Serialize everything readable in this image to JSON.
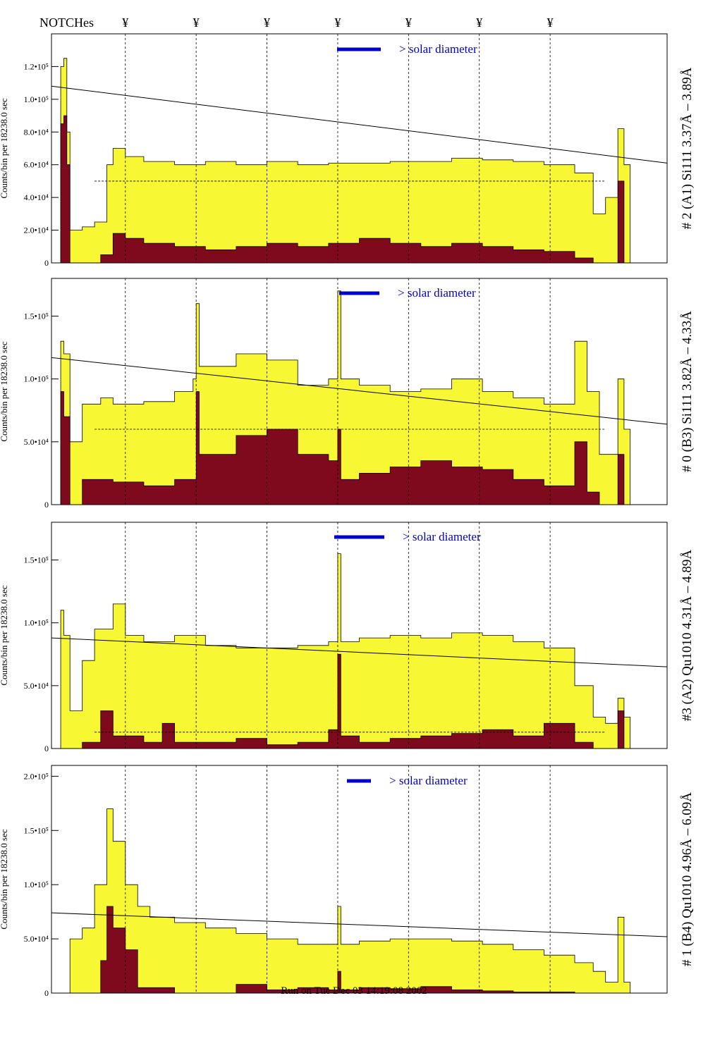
{
  "notches_label": "NOTCHes",
  "notch_symbol": "¥",
  "notch_positions_bin": [
    0.12,
    0.235,
    0.35,
    0.465,
    0.58,
    0.695,
    0.81
  ],
  "footer": "Run on Tue Dec 03 14:19:08 2002",
  "colors": {
    "yellow": "#f7f733",
    "maroon": "#7f0a1e",
    "blue": "#0000cc"
  },
  "solar_label": "> solar diameter",
  "chart_data": [
    {
      "type": "bar",
      "right_label": "# 2 (A1) Si111  3.37Å – 3.89Å",
      "ylabel": "Counts/bin per  18238.0 sec",
      "ylim": [
        0,
        140000
      ],
      "yticks": [
        0,
        20000,
        40000,
        60000,
        80000,
        100000,
        120000
      ],
      "ytick_labels": [
        "0",
        "2.0•10⁴",
        "4.0•10⁴",
        "6.0•10⁴",
        "8.0•10⁴",
        "1.0•10⁵",
        "1.2•10⁵"
      ],
      "solid_line": [
        [
          0,
          108000
        ],
        [
          1,
          61000
        ]
      ],
      "dashed_level": 50000,
      "series": [
        {
          "name": "yellow",
          "points": [
            [
              0.0,
              0
            ],
            [
              0.012,
              0
            ],
            [
              0.015,
              120000
            ],
            [
              0.02,
              125000
            ],
            [
              0.025,
              80000
            ],
            [
              0.03,
              20000
            ],
            [
              0.05,
              22000
            ],
            [
              0.07,
              25000
            ],
            [
              0.09,
              60000
            ],
            [
              0.1,
              70000
            ],
            [
              0.12,
              65000
            ],
            [
              0.15,
              62000
            ],
            [
              0.2,
              60000
            ],
            [
              0.25,
              62000
            ],
            [
              0.3,
              60000
            ],
            [
              0.35,
              62000
            ],
            [
              0.4,
              60000
            ],
            [
              0.45,
              61000
            ],
            [
              0.5,
              61000
            ],
            [
              0.55,
              62000
            ],
            [
              0.6,
              62000
            ],
            [
              0.65,
              64000
            ],
            [
              0.7,
              63000
            ],
            [
              0.75,
              62000
            ],
            [
              0.8,
              60000
            ],
            [
              0.85,
              55000
            ],
            [
              0.88,
              30000
            ],
            [
              0.9,
              40000
            ],
            [
              0.92,
              82000
            ],
            [
              0.93,
              60000
            ],
            [
              0.94,
              0
            ],
            [
              1.0,
              0
            ]
          ]
        },
        {
          "name": "maroon",
          "points": [
            [
              0.0,
              0
            ],
            [
              0.012,
              0
            ],
            [
              0.015,
              85000
            ],
            [
              0.02,
              90000
            ],
            [
              0.025,
              60000
            ],
            [
              0.03,
              0
            ],
            [
              0.08,
              5000
            ],
            [
              0.1,
              18000
            ],
            [
              0.12,
              15000
            ],
            [
              0.15,
              12000
            ],
            [
              0.2,
              10000
            ],
            [
              0.25,
              8000
            ],
            [
              0.3,
              10000
            ],
            [
              0.35,
              12000
            ],
            [
              0.4,
              10000
            ],
            [
              0.45,
              12000
            ],
            [
              0.5,
              15000
            ],
            [
              0.55,
              12000
            ],
            [
              0.6,
              10000
            ],
            [
              0.65,
              12000
            ],
            [
              0.7,
              10000
            ],
            [
              0.75,
              8000
            ],
            [
              0.8,
              7000
            ],
            [
              0.85,
              3000
            ],
            [
              0.88,
              0
            ],
            [
              0.92,
              50000
            ],
            [
              0.93,
              0
            ],
            [
              1.0,
              0
            ]
          ]
        }
      ]
    },
    {
      "type": "bar",
      "right_label": "# 0 (B3) Si111  3.82Å – 4.33Å",
      "ylabel": "Counts/bin per  18238.0 sec",
      "ylim": [
        0,
        180000
      ],
      "yticks": [
        0,
        50000,
        100000,
        150000
      ],
      "ytick_labels": [
        "0",
        "5.0•10⁴",
        "1.0•10⁵",
        "1.5•10⁵"
      ],
      "solid_line": [
        [
          0,
          117000
        ],
        [
          1,
          64000
        ]
      ],
      "dashed_level": 60000,
      "series": [
        {
          "name": "yellow",
          "points": [
            [
              0.0,
              0
            ],
            [
              0.01,
              0
            ],
            [
              0.015,
              130000
            ],
            [
              0.02,
              120000
            ],
            [
              0.03,
              50000
            ],
            [
              0.05,
              80000
            ],
            [
              0.08,
              85000
            ],
            [
              0.1,
              80000
            ],
            [
              0.15,
              82000
            ],
            [
              0.2,
              90000
            ],
            [
              0.23,
              100000
            ],
            [
              0.235,
              160000
            ],
            [
              0.24,
              110000
            ],
            [
              0.3,
              120000
            ],
            [
              0.35,
              115000
            ],
            [
              0.4,
              95000
            ],
            [
              0.45,
              100000
            ],
            [
              0.465,
              170000
            ],
            [
              0.47,
              100000
            ],
            [
              0.5,
              95000
            ],
            [
              0.55,
              90000
            ],
            [
              0.6,
              92000
            ],
            [
              0.65,
              100000
            ],
            [
              0.7,
              90000
            ],
            [
              0.75,
              85000
            ],
            [
              0.8,
              80000
            ],
            [
              0.85,
              130000
            ],
            [
              0.87,
              90000
            ],
            [
              0.89,
              40000
            ],
            [
              0.92,
              100000
            ],
            [
              0.93,
              60000
            ],
            [
              0.94,
              0
            ],
            [
              1.0,
              0
            ]
          ]
        },
        {
          "name": "maroon",
          "points": [
            [
              0.0,
              0
            ],
            [
              0.01,
              0
            ],
            [
              0.015,
              90000
            ],
            [
              0.02,
              70000
            ],
            [
              0.03,
              0
            ],
            [
              0.05,
              20000
            ],
            [
              0.1,
              18000
            ],
            [
              0.15,
              15000
            ],
            [
              0.2,
              20000
            ],
            [
              0.235,
              90000
            ],
            [
              0.24,
              40000
            ],
            [
              0.3,
              55000
            ],
            [
              0.35,
              60000
            ],
            [
              0.4,
              40000
            ],
            [
              0.45,
              35000
            ],
            [
              0.465,
              60000
            ],
            [
              0.47,
              20000
            ],
            [
              0.5,
              25000
            ],
            [
              0.55,
              30000
            ],
            [
              0.6,
              35000
            ],
            [
              0.65,
              30000
            ],
            [
              0.7,
              28000
            ],
            [
              0.75,
              20000
            ],
            [
              0.8,
              15000
            ],
            [
              0.85,
              50000
            ],
            [
              0.87,
              10000
            ],
            [
              0.89,
              0
            ],
            [
              0.92,
              40000
            ],
            [
              0.93,
              0
            ],
            [
              1.0,
              0
            ]
          ]
        }
      ]
    },
    {
      "type": "bar",
      "right_label": "#3 (A2) Qu1010  4.31Å – 4.89Å",
      "ylabel": "Counts/bin per  18238.0 sec",
      "ylim": [
        0,
        180000
      ],
      "yticks": [
        0,
        50000,
        100000,
        150000
      ],
      "ytick_labels": [
        "0",
        "5.0•10⁴",
        "1.0•10⁵",
        "1.5•10⁵"
      ],
      "solid_line": [
        [
          0,
          88000
        ],
        [
          1,
          65000
        ]
      ],
      "dashed_level": 13000,
      "series": [
        {
          "name": "yellow",
          "points": [
            [
              0.0,
              0
            ],
            [
              0.01,
              0
            ],
            [
              0.015,
              110000
            ],
            [
              0.02,
              90000
            ],
            [
              0.03,
              30000
            ],
            [
              0.05,
              70000
            ],
            [
              0.07,
              95000
            ],
            [
              0.1,
              115000
            ],
            [
              0.12,
              90000
            ],
            [
              0.15,
              85000
            ],
            [
              0.2,
              90000
            ],
            [
              0.25,
              82000
            ],
            [
              0.3,
              80000
            ],
            [
              0.35,
              80000
            ],
            [
              0.4,
              82000
            ],
            [
              0.45,
              85000
            ],
            [
              0.465,
              155000
            ],
            [
              0.47,
              85000
            ],
            [
              0.5,
              88000
            ],
            [
              0.55,
              90000
            ],
            [
              0.6,
              88000
            ],
            [
              0.65,
              92000
            ],
            [
              0.7,
              90000
            ],
            [
              0.75,
              85000
            ],
            [
              0.8,
              80000
            ],
            [
              0.85,
              50000
            ],
            [
              0.88,
              25000
            ],
            [
              0.9,
              20000
            ],
            [
              0.92,
              40000
            ],
            [
              0.93,
              25000
            ],
            [
              0.94,
              0
            ],
            [
              1.0,
              0
            ]
          ]
        },
        {
          "name": "maroon",
          "points": [
            [
              0.0,
              0
            ],
            [
              0.01,
              0
            ],
            [
              0.05,
              5000
            ],
            [
              0.08,
              30000
            ],
            [
              0.1,
              10000
            ],
            [
              0.15,
              5000
            ],
            [
              0.18,
              20000
            ],
            [
              0.2,
              5000
            ],
            [
              0.3,
              8000
            ],
            [
              0.35,
              3000
            ],
            [
              0.4,
              5000
            ],
            [
              0.45,
              15000
            ],
            [
              0.465,
              75000
            ],
            [
              0.47,
              10000
            ],
            [
              0.5,
              5000
            ],
            [
              0.55,
              8000
            ],
            [
              0.6,
              10000
            ],
            [
              0.65,
              12000
            ],
            [
              0.7,
              15000
            ],
            [
              0.75,
              10000
            ],
            [
              0.8,
              20000
            ],
            [
              0.85,
              5000
            ],
            [
              0.88,
              0
            ],
            [
              0.92,
              30000
            ],
            [
              0.93,
              0
            ],
            [
              1.0,
              0
            ]
          ]
        }
      ]
    },
    {
      "type": "bar",
      "right_label": "# 1 (B4) Qu1010 4.96Å – 6.09Å",
      "ylabel": "Counts/bin per  18238.0 sec",
      "ylim": [
        0,
        210000
      ],
      "yticks": [
        0,
        50000,
        100000,
        150000,
        200000
      ],
      "ytick_labels": [
        "0",
        "5.0•10⁴",
        "1.0•10⁵",
        "1.5•10⁵",
        "2.0•10⁵"
      ],
      "solid_line": [
        [
          0,
          74000
        ],
        [
          1,
          52000
        ]
      ],
      "dashed_level": 0,
      "series": [
        {
          "name": "yellow",
          "points": [
            [
              0.0,
              0
            ],
            [
              0.01,
              0
            ],
            [
              0.03,
              50000
            ],
            [
              0.05,
              60000
            ],
            [
              0.07,
              100000
            ],
            [
              0.09,
              170000
            ],
            [
              0.1,
              140000
            ],
            [
              0.12,
              100000
            ],
            [
              0.14,
              80000
            ],
            [
              0.16,
              70000
            ],
            [
              0.2,
              65000
            ],
            [
              0.25,
              60000
            ],
            [
              0.3,
              55000
            ],
            [
              0.35,
              50000
            ],
            [
              0.4,
              45000
            ],
            [
              0.45,
              45000
            ],
            [
              0.465,
              80000
            ],
            [
              0.47,
              45000
            ],
            [
              0.5,
              48000
            ],
            [
              0.55,
              50000
            ],
            [
              0.6,
              50000
            ],
            [
              0.65,
              48000
            ],
            [
              0.7,
              45000
            ],
            [
              0.75,
              40000
            ],
            [
              0.8,
              35000
            ],
            [
              0.85,
              28000
            ],
            [
              0.88,
              20000
            ],
            [
              0.9,
              10000
            ],
            [
              0.92,
              70000
            ],
            [
              0.93,
              10000
            ],
            [
              0.94,
              0
            ],
            [
              1.0,
              0
            ]
          ]
        },
        {
          "name": "maroon",
          "points": [
            [
              0.0,
              0
            ],
            [
              0.06,
              0
            ],
            [
              0.08,
              30000
            ],
            [
              0.09,
              80000
            ],
            [
              0.1,
              60000
            ],
            [
              0.12,
              40000
            ],
            [
              0.14,
              5000
            ],
            [
              0.2,
              0
            ],
            [
              0.3,
              8000
            ],
            [
              0.35,
              3000
            ],
            [
              0.4,
              5000
            ],
            [
              0.45,
              3000
            ],
            [
              0.465,
              20000
            ],
            [
              0.47,
              3000
            ],
            [
              0.5,
              5000
            ],
            [
              0.55,
              4000
            ],
            [
              0.6,
              6000
            ],
            [
              0.65,
              3000
            ],
            [
              0.7,
              2000
            ],
            [
              0.75,
              1000
            ],
            [
              0.8,
              1000
            ],
            [
              0.85,
              0
            ],
            [
              1.0,
              0
            ]
          ]
        }
      ]
    }
  ]
}
